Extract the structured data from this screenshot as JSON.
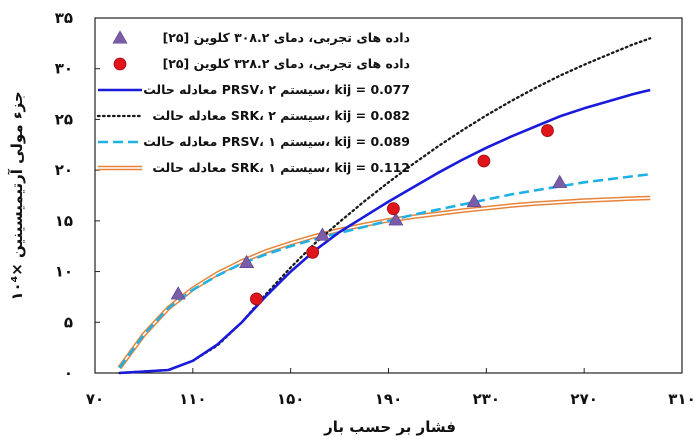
{
  "chart_data": {
    "type": "line",
    "title": "",
    "xlabel": "فشار بر حسب بار",
    "ylabel": "جزء مولی آرتیمیسینین ×۱۰⁴",
    "xlim": [
      70,
      310
    ],
    "ylim": [
      0,
      35
    ],
    "x_ticks": [
      70,
      110,
      150,
      190,
      230,
      270,
      310
    ],
    "x_tick_labels": [
      "۷۰",
      "۱۱۰",
      "۱۵۰",
      "۱۹۰",
      "۲۳۰",
      "۲۷۰",
      "۳۱۰"
    ],
    "y_ticks": [
      0,
      5,
      10,
      15,
      20,
      25,
      30,
      35
    ],
    "y_tick_labels": [
      "۰",
      "۵",
      "۱۰",
      "۱۵",
      "۲۰",
      "۲۵",
      "۳۰",
      "۳۵"
    ],
    "legend_position": "top-left",
    "series": [
      {
        "name": "داده های تجربی، دمای ۳۰۸.۲ کلوین [۲۵]",
        "kind": "scatter",
        "marker": "triangle",
        "color": "#7a5ca8",
        "points": [
          [
            104,
            7.8
          ],
          [
            132,
            10.9
          ],
          [
            163,
            13.6
          ],
          [
            193,
            15.1
          ],
          [
            225,
            16.9
          ],
          [
            260,
            18.8
          ]
        ]
      },
      {
        "name": "داده های تجربی، دمای ۳۲۸.۲ کلوین [۲۵]",
        "kind": "scatter",
        "marker": "circle",
        "color": "#e0141b",
        "points": [
          [
            136,
            7.3
          ],
          [
            159,
            11.9
          ],
          [
            192,
            16.2
          ],
          [
            229,
            20.9
          ],
          [
            255,
            23.9
          ]
        ]
      },
      {
        "name": "معادله حالت PRSV، سیستم ۲، kij = 0.077",
        "kind": "line",
        "style": "solid",
        "color": "#1a1adb",
        "points": [
          [
            80,
            0
          ],
          [
            100,
            0.3
          ],
          [
            110,
            1.2
          ],
          [
            120,
            2.8
          ],
          [
            130,
            5
          ],
          [
            140,
            7.6
          ],
          [
            150,
            10
          ],
          [
            160,
            12.1
          ],
          [
            170,
            13.9
          ],
          [
            180,
            15.4
          ],
          [
            190,
            16.9
          ],
          [
            200,
            18.3
          ],
          [
            210,
            19.7
          ],
          [
            220,
            21
          ],
          [
            230,
            22.2
          ],
          [
            240,
            23.3
          ],
          [
            250,
            24.3
          ],
          [
            260,
            25.3
          ],
          [
            270,
            26.1
          ],
          [
            280,
            26.8
          ],
          [
            290,
            27.5
          ],
          [
            297,
            27.9
          ]
        ]
      },
      {
        "name": "معادله حالت SRK، سیستم ۲، kij = 0.082",
        "kind": "line",
        "style": "dotted",
        "color": "#1a1a1a",
        "points": [
          [
            80,
            0
          ],
          [
            100,
            0.3
          ],
          [
            110,
            1.2
          ],
          [
            120,
            2.7
          ],
          [
            130,
            5
          ],
          [
            140,
            7.8
          ],
          [
            150,
            10.4
          ],
          [
            160,
            12.8
          ],
          [
            170,
            14.9
          ],
          [
            180,
            16.9
          ],
          [
            190,
            18.8
          ],
          [
            200,
            20.6
          ],
          [
            210,
            22.3
          ],
          [
            220,
            23.9
          ],
          [
            230,
            25.4
          ],
          [
            240,
            26.8
          ],
          [
            250,
            28.1
          ],
          [
            260,
            29.3
          ],
          [
            270,
            30.4
          ],
          [
            280,
            31.4
          ],
          [
            290,
            32.4
          ],
          [
            297,
            33
          ]
        ]
      },
      {
        "name": "معادله حالت PRSV، سیستم ۱، kij = 0.089",
        "kind": "line",
        "style": "dashed",
        "color": "#1fb1e6",
        "points": [
          [
            80,
            0.5
          ],
          [
            90,
            3.8
          ],
          [
            100,
            6.4
          ],
          [
            110,
            8.2
          ],
          [
            120,
            9.6
          ],
          [
            130,
            10.8
          ],
          [
            140,
            11.7
          ],
          [
            150,
            12.5
          ],
          [
            160,
            13.2
          ],
          [
            170,
            13.8
          ],
          [
            180,
            14.4
          ],
          [
            190,
            15
          ],
          [
            200,
            15.6
          ],
          [
            210,
            16.1
          ],
          [
            220,
            16.6
          ],
          [
            230,
            17.1
          ],
          [
            240,
            17.6
          ],
          [
            250,
            18
          ],
          [
            260,
            18.4
          ],
          [
            270,
            18.8
          ],
          [
            280,
            19.1
          ],
          [
            290,
            19.4
          ],
          [
            297,
            19.6
          ]
        ]
      },
      {
        "name": "معادله حالت SRK، سیستم ۱، kij = 0.112",
        "kind": "line",
        "style": "double",
        "color": "#e8843a",
        "points": [
          [
            80,
            0.5
          ],
          [
            90,
            3.8
          ],
          [
            100,
            6.4
          ],
          [
            110,
            8.3
          ],
          [
            120,
            9.8
          ],
          [
            130,
            11
          ],
          [
            140,
            12
          ],
          [
            150,
            12.8
          ],
          [
            160,
            13.5
          ],
          [
            170,
            14.1
          ],
          [
            180,
            14.6
          ],
          [
            190,
            15.05
          ],
          [
            200,
            15.4
          ],
          [
            210,
            15.7
          ],
          [
            220,
            16
          ],
          [
            230,
            16.25
          ],
          [
            240,
            16.5
          ],
          [
            250,
            16.7
          ],
          [
            260,
            16.85
          ],
          [
            270,
            17
          ],
          [
            280,
            17.1
          ],
          [
            290,
            17.2
          ],
          [
            297,
            17.25
          ]
        ]
      }
    ]
  }
}
